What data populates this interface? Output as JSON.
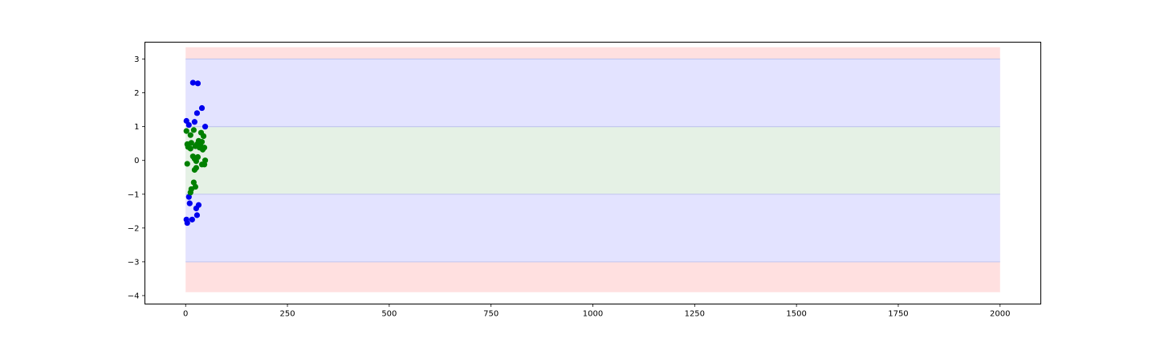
{
  "chart_data": {
    "type": "scatter",
    "title": "",
    "xlabel": "",
    "ylabel": "",
    "xlim": [
      -100,
      2100
    ],
    "ylim": [
      -4.25,
      3.5
    ],
    "xticks": [
      0,
      250,
      500,
      750,
      1000,
      1250,
      1500,
      1750,
      2000
    ],
    "xtick_labels": [
      "0",
      "250",
      "500",
      "750",
      "1000",
      "1250",
      "1500",
      "1750",
      "2000"
    ],
    "yticks": [
      3,
      2,
      1,
      0,
      -1,
      -2,
      -3,
      -4
    ],
    "ytick_labels": [
      "3",
      "2",
      "1",
      "0",
      "−1",
      "−2",
      "−3",
      "−4"
    ],
    "grid": false,
    "legend": "none",
    "bands": [
      {
        "x": [
          0,
          2000
        ],
        "y": [
          -3.9,
          3.35
        ],
        "color": "#ffe0e0"
      },
      {
        "x": [
          0,
          2000
        ],
        "y": [
          -3,
          3
        ],
        "color": "#e3e3ff"
      },
      {
        "x": [
          0,
          2000
        ],
        "y": [
          -1,
          1
        ],
        "color": "#e5f1e5"
      }
    ],
    "band_edge_color": "#c4c8f0",
    "series": [
      {
        "color": "#0000ee",
        "points": [
          [
            18,
            2.3
          ],
          [
            30,
            2.28
          ],
          [
            40,
            1.55
          ],
          [
            28,
            1.4
          ],
          [
            2,
            1.17
          ],
          [
            22,
            1.14
          ],
          [
            8,
            1.05
          ],
          [
            48,
            1.0
          ],
          [
            8,
            -1.08
          ],
          [
            10,
            -1.27
          ],
          [
            32,
            -1.32
          ],
          [
            26,
            -1.42
          ],
          [
            28,
            -1.62
          ],
          [
            2,
            -1.75
          ],
          [
            16,
            -1.75
          ],
          [
            4,
            -1.85
          ]
        ]
      },
      {
        "color": "#008000",
        "points": [
          [
            2,
            0.87
          ],
          [
            20,
            0.9
          ],
          [
            38,
            0.82
          ],
          [
            12,
            0.75
          ],
          [
            44,
            0.72
          ],
          [
            32,
            0.58
          ],
          [
            14,
            0.52
          ],
          [
            40,
            0.55
          ],
          [
            4,
            0.48
          ],
          [
            28,
            0.48
          ],
          [
            36,
            0.45
          ],
          [
            6,
            0.4
          ],
          [
            24,
            0.42
          ],
          [
            34,
            0.38
          ],
          [
            46,
            0.38
          ],
          [
            12,
            0.35
          ],
          [
            42,
            0.32
          ],
          [
            18,
            0.12
          ],
          [
            30,
            0.1
          ],
          [
            22,
            0.05
          ],
          [
            48,
            0.0
          ],
          [
            26,
            -0.02
          ],
          [
            4,
            -0.1
          ],
          [
            40,
            -0.12
          ],
          [
            46,
            -0.12
          ],
          [
            26,
            -0.22
          ],
          [
            22,
            -0.28
          ],
          [
            24,
            -0.78
          ],
          [
            20,
            -0.65
          ],
          [
            14,
            -0.85
          ],
          [
            12,
            -0.95
          ]
        ]
      }
    ]
  }
}
